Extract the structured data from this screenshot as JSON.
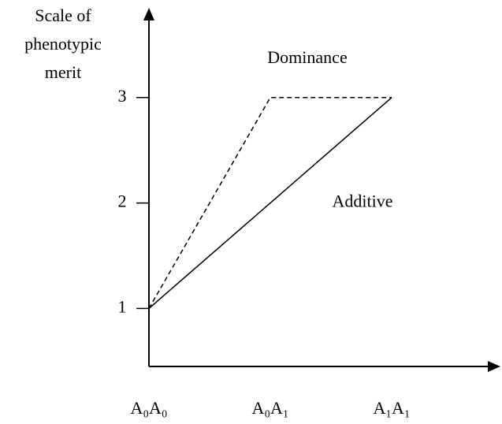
{
  "chart_data": {
    "type": "line",
    "y_label": "Scale of phenotypic merit",
    "categories": [
      "A₀A₀",
      "A₀A₁",
      "A₁A₁"
    ],
    "series": [
      {
        "name": "Additive",
        "color": "#000000",
        "line_style": "solid",
        "values": [
          1,
          2,
          3
        ]
      },
      {
        "name": "Dominance",
        "color": "#000000",
        "line_style": "dashed",
        "values": [
          1,
          3,
          3
        ]
      }
    ],
    "ylim": [
      0.45,
      3.85
    ],
    "yticks": [
      1,
      2,
      3
    ],
    "grid": false
  }
}
